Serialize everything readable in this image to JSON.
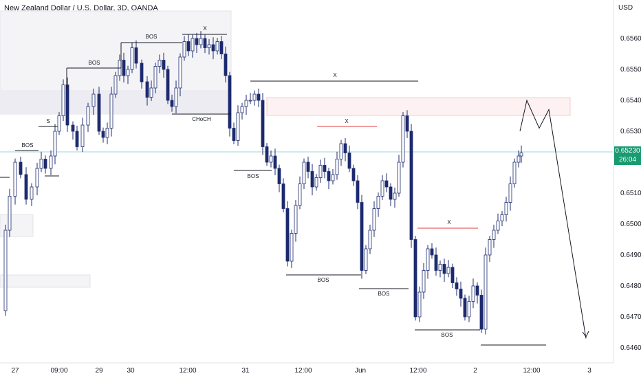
{
  "title": "New Zealand Dollar / U.S. Dollar, 3D, OANDA",
  "currency": "USD",
  "last_price": {
    "value": "0.65230",
    "countdown": "26:04"
  },
  "chart_data": {
    "type": "candlestick",
    "price_axis": {
      "side": "right",
      "range": [
        0.6455,
        0.6575
      ],
      "ticks": [
        "0.65600",
        "0.65500",
        "0.65400",
        "0.65300",
        "0.65200",
        "0.65100",
        "0.65000",
        "0.64900",
        "0.64800",
        "0.64700",
        "0.64600"
      ]
    },
    "time_axis": {
      "labels": [
        "27",
        "09:00",
        "29",
        "30",
        "12:00",
        "31",
        "12:00",
        "Jun",
        "12:00",
        "2",
        "12:00",
        "3"
      ]
    },
    "annotations": [
      "BOS",
      "BOS",
      "BOS",
      "S",
      "CHoCH",
      "BOS",
      "X",
      "X",
      "X",
      "X",
      "BOS",
      "BOS",
      "BOS",
      "BOS"
    ],
    "zones": [
      {
        "kind": "demand/supply",
        "from": "27",
        "to": "31",
        "high": 0.6568,
        "low": 0.6536,
        "color": "#e9e9ef"
      },
      {
        "kind": "supply",
        "from": "31",
        "to": "2 12:00",
        "high": 0.6541,
        "low": 0.6536,
        "color": "#f8d4d4"
      }
    ],
    "projection": {
      "points": [
        0.653,
        0.654,
        0.6531,
        0.6537,
        0.6463
      ]
    },
    "colors": {
      "up": "#ffffff",
      "down": "#1d2a6e",
      "outline": "#1d2a6e",
      "last_price_line": "#9ad6e2",
      "key_level": "#e23b3b"
    }
  }
}
